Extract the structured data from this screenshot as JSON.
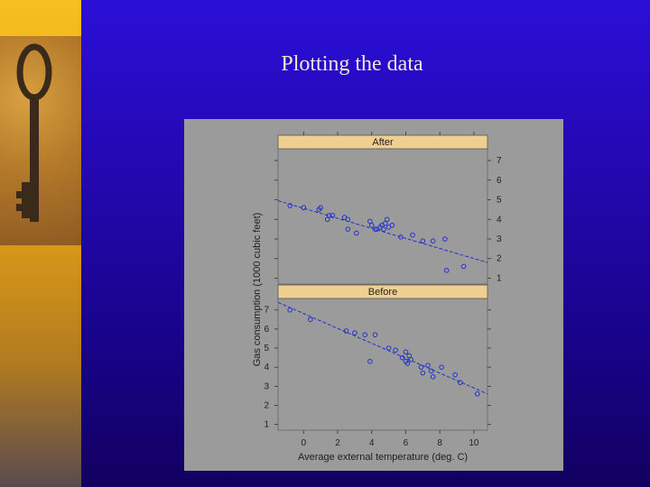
{
  "slide": {
    "title": "Plotting the data",
    "colors": {
      "accent": "#2a0fd8",
      "strip": "#f5c020",
      "plot_bg": "#9b9b9b",
      "series": "#2233cc"
    },
    "left_image_icon": "antique-key-photo"
  },
  "chart_data": {
    "type": "scatter",
    "xlabel": "Average external temperature (deg. C)",
    "ylabel": "Gas consumption (1000 cubic feet)",
    "xticks": [
      "0",
      "2",
      "4",
      "6",
      "8",
      "10"
    ],
    "yticks": [
      "1",
      "2",
      "3",
      "4",
      "5",
      "6",
      "7"
    ],
    "xlim": [
      -1.5,
      10.8
    ],
    "ylim": [
      0.7,
      7.6
    ],
    "grid": false,
    "panels": [
      {
        "name": "After",
        "points": [
          {
            "x": -0.8,
            "y": 4.7
          },
          {
            "x": 0,
            "y": 4.6
          },
          {
            "x": 0.9,
            "y": 4.5
          },
          {
            "x": 1.0,
            "y": 4.6
          },
          {
            "x": 1.4,
            "y": 4.0
          },
          {
            "x": 1.5,
            "y": 4.2
          },
          {
            "x": 1.7,
            "y": 4.2
          },
          {
            "x": 2.4,
            "y": 4.1
          },
          {
            "x": 2.6,
            "y": 4.0
          },
          {
            "x": 2.6,
            "y": 3.5
          },
          {
            "x": 3.1,
            "y": 3.3
          },
          {
            "x": 3.9,
            "y": 3.9
          },
          {
            "x": 4.0,
            "y": 3.7
          },
          {
            "x": 4.2,
            "y": 3.5
          },
          {
            "x": 4.3,
            "y": 3.5
          },
          {
            "x": 4.5,
            "y": 3.6
          },
          {
            "x": 4.6,
            "y": 3.7
          },
          {
            "x": 4.7,
            "y": 3.5
          },
          {
            "x": 4.8,
            "y": 3.8
          },
          {
            "x": 4.9,
            "y": 4.0
          },
          {
            "x": 5.0,
            "y": 3.6
          },
          {
            "x": 5.2,
            "y": 3.7
          },
          {
            "x": 5.7,
            "y": 3.1
          },
          {
            "x": 6.4,
            "y": 3.2
          },
          {
            "x": 7.0,
            "y": 2.9
          },
          {
            "x": 7.6,
            "y": 2.9
          },
          {
            "x": 8.3,
            "y": 3.0
          },
          {
            "x": 8.4,
            "y": 1.4
          },
          {
            "x": 9.4,
            "y": 1.6
          }
        ],
        "fit": {
          "x": [
            -1.5,
            10.8
          ],
          "y": [
            4.95,
            1.8
          ]
        }
      },
      {
        "name": "Before",
        "points": [
          {
            "x": -0.8,
            "y": 7.0
          },
          {
            "x": 0.4,
            "y": 6.5
          },
          {
            "x": 2.5,
            "y": 5.9
          },
          {
            "x": 3.0,
            "y": 5.8
          },
          {
            "x": 3.6,
            "y": 5.7
          },
          {
            "x": 3.9,
            "y": 4.3
          },
          {
            "x": 4.2,
            "y": 5.7
          },
          {
            "x": 5.0,
            "y": 5.0
          },
          {
            "x": 5.4,
            "y": 4.9
          },
          {
            "x": 5.8,
            "y": 4.5
          },
          {
            "x": 6.0,
            "y": 4.8
          },
          {
            "x": 6.0,
            "y": 4.3
          },
          {
            "x": 6.1,
            "y": 4.2
          },
          {
            "x": 6.2,
            "y": 4.6
          },
          {
            "x": 6.3,
            "y": 4.4
          },
          {
            "x": 6.9,
            "y": 4.0
          },
          {
            "x": 7.0,
            "y": 3.7
          },
          {
            "x": 7.3,
            "y": 4.1
          },
          {
            "x": 7.5,
            "y": 3.8
          },
          {
            "x": 7.6,
            "y": 3.5
          },
          {
            "x": 8.1,
            "y": 4.0
          },
          {
            "x": 8.9,
            "y": 3.6
          },
          {
            "x": 9.2,
            "y": 3.2
          },
          {
            "x": 10.2,
            "y": 2.6
          }
        ],
        "fit": {
          "x": [
            -1.5,
            10.8
          ],
          "y": [
            7.4,
            2.6
          ]
        }
      }
    ]
  }
}
